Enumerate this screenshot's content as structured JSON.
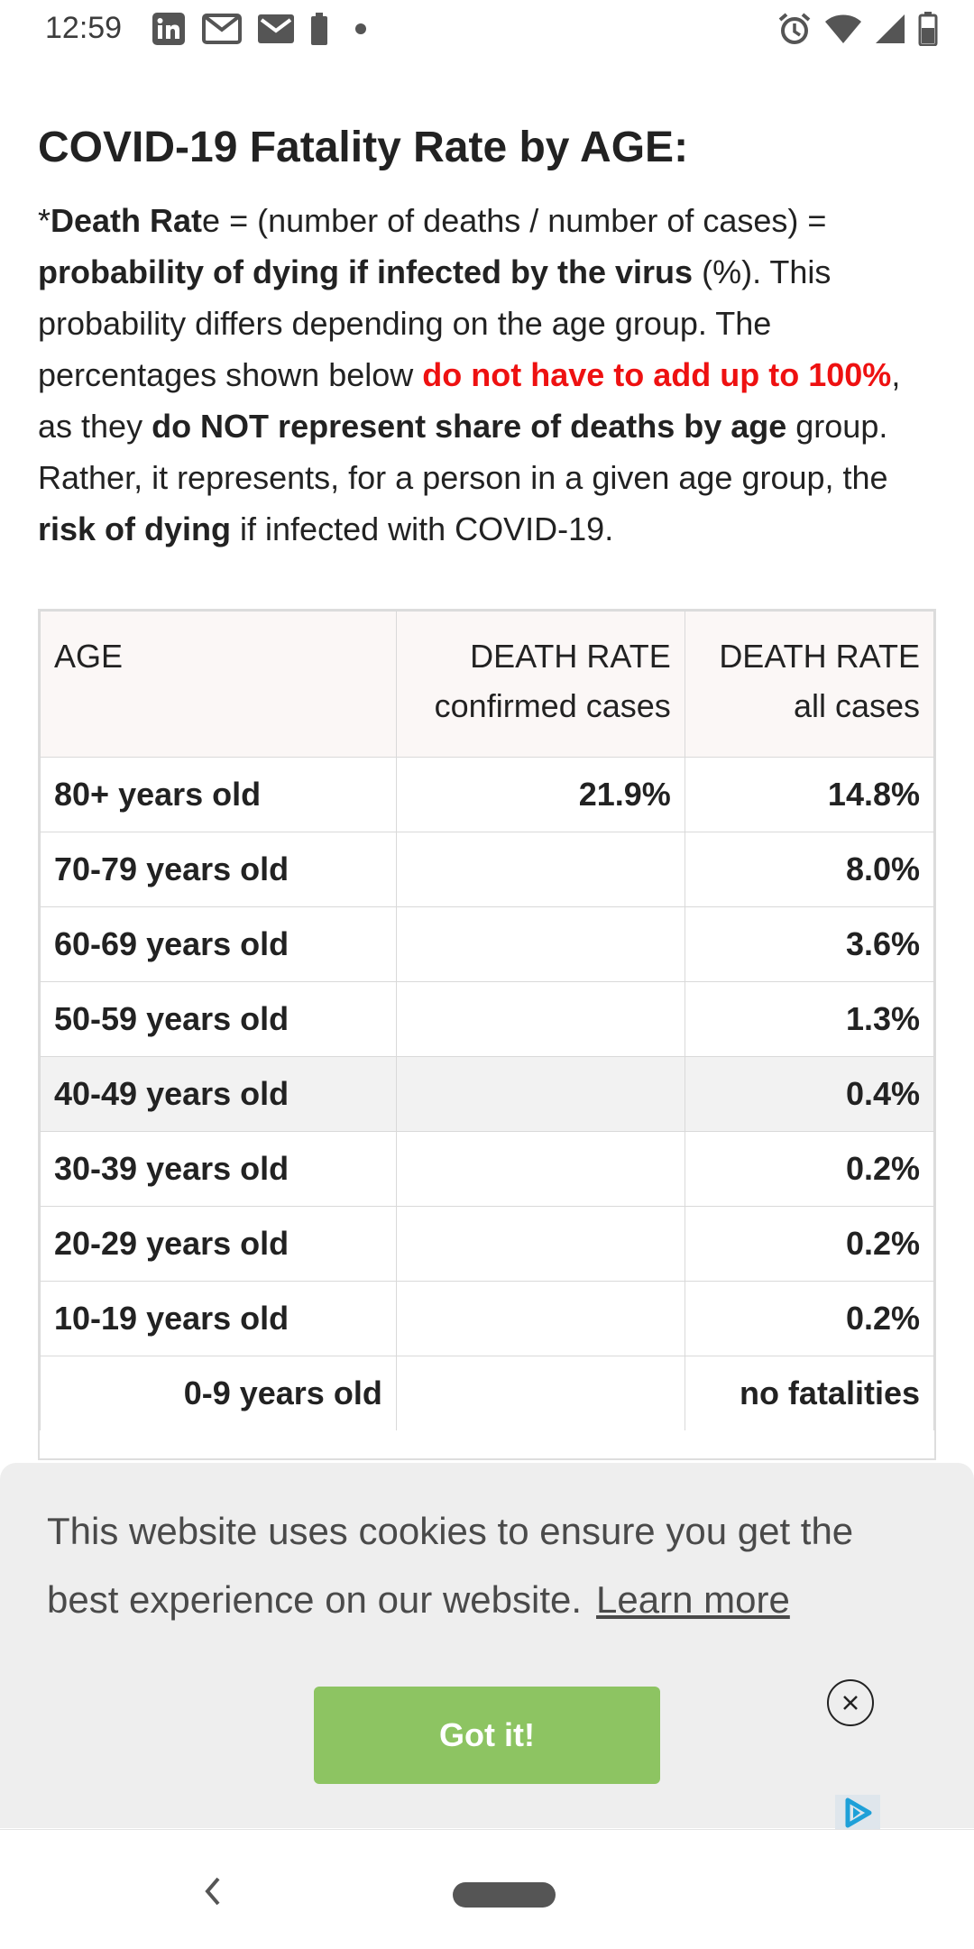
{
  "status_bar": {
    "time": "12:59",
    "left_icons": [
      "linkedin-icon",
      "gmail-icon",
      "gmail-icon",
      "battery-saver-icon",
      "dot-icon"
    ],
    "right_icons": [
      "alarm-icon",
      "wifi-icon",
      "signal-icon",
      "battery-icon"
    ]
  },
  "article": {
    "heading": "COVID-19 Fatality Rate by AGE:",
    "intro": {
      "p1_prefix": "*",
      "p1_bold": "Death Rat",
      "p1_rest": "e = (number of deaths / number of cases) = ",
      "p2_bold": "probability of dying if infected by the virus",
      "p2_rest": " (%). This probability differs depending on the age group. The percentages shown below ",
      "p3_red": "do not have to add up to 100%",
      "p3_rest": ", as they ",
      "p4_bold": "do NOT represent share of deaths by age",
      "p4_rest": " group. Rather, it represents, for a person in a given age group, the ",
      "p5_bold": "risk of dying",
      "p5_rest": " if infected with COVID-19."
    }
  },
  "table": {
    "headers": {
      "age": "AGE",
      "confirmed_line1": "DEATH RATE",
      "confirmed_line2": "confirmed cases",
      "all_line1": "DEATH RATE",
      "all_line2": "all cases"
    },
    "rows": [
      {
        "age": "80+ years old",
        "confirmed": "21.9%",
        "all": "14.8%"
      },
      {
        "age": "70-79 years old",
        "confirmed": "",
        "all": "8.0%"
      },
      {
        "age": "60-69 years old",
        "confirmed": "",
        "all": "3.6%"
      },
      {
        "age": "50-59 years old",
        "confirmed": "",
        "all": "1.3%"
      },
      {
        "age": "40-49 years old",
        "confirmed": "",
        "all": "0.4%"
      },
      {
        "age": "30-39 years old",
        "confirmed": "",
        "all": "0.2%"
      },
      {
        "age": "20-29 years old",
        "confirmed": "",
        "all": "0.2%"
      },
      {
        "age": "10-19 years old",
        "confirmed": "",
        "all": "0.2%"
      },
      {
        "age": "0-9 years old",
        "confirmed": "",
        "all": "no fatalities"
      }
    ]
  },
  "cookie_banner": {
    "text": "This website uses cookies to ensure you get the best experience on our website.",
    "learn_more": "Learn more",
    "button": "Got it!",
    "close_icon": "close-icon",
    "ad_icon": "ad-choices-icon"
  },
  "nav_bar": {
    "back_icon": "back-chevron-icon",
    "home_icon": "home-pill-icon"
  },
  "colors": {
    "accent_red": "#ee1111",
    "button_green": "#8dc462",
    "banner_bg": "#eeeeee",
    "header_bg": "#fbf7f6"
  }
}
